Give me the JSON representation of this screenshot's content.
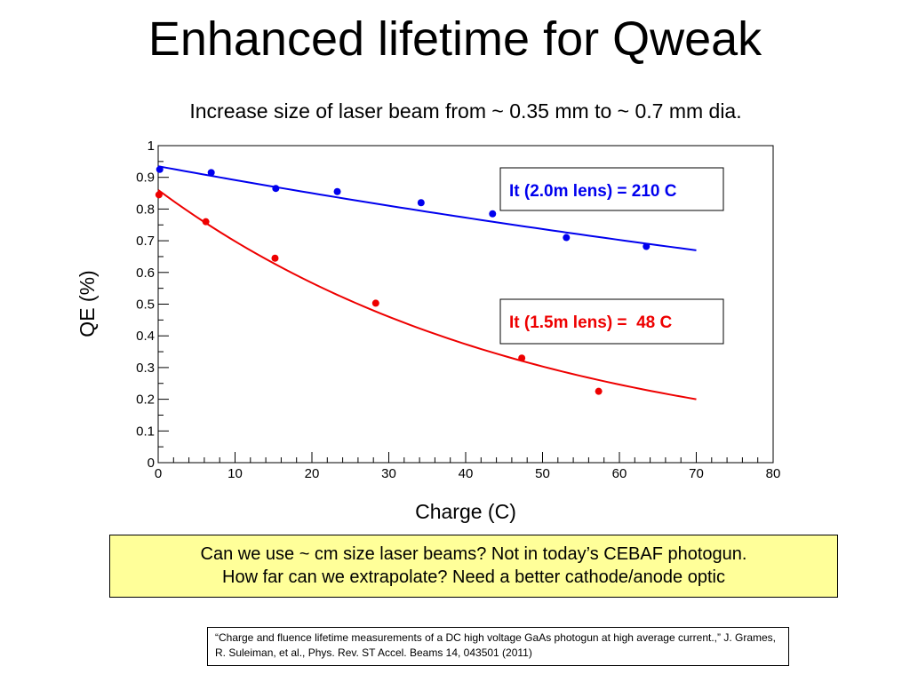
{
  "slide": {
    "title": "Enhanced lifetime for Qweak",
    "subtitle": "Increase size of laser beam from ~ 0.35 mm to ~ 0.7 mm dia.",
    "note_line1": "Can we use ~ cm size laser beams?  Not in today’s CEBAF photogun.",
    "note_line2": "How far can we extrapolate?  Need a better cathode/anode optic",
    "citation": "“Charge and fluence lifetime measurements of a DC high voltage GaAs photogun at high average current.,” J. Grames, R. Suleiman, et al., Phys. Rev. ST Accel. Beams 14, 043501 (2011)"
  },
  "chart_data": {
    "type": "scatter",
    "xlabel": "Charge (C)",
    "ylabel": "QE (%)",
    "xlim": [
      0,
      80
    ],
    "ylim": [
      0,
      1
    ],
    "x_ticks": [
      0,
      10,
      20,
      30,
      40,
      50,
      60,
      70,
      80
    ],
    "y_ticks": [
      0,
      0.1,
      0.2,
      0.3,
      0.4,
      0.5,
      0.6,
      0.7,
      0.8,
      0.9,
      1
    ],
    "grid": false,
    "series": [
      {
        "name": "It (2.0m lens) = 210 C",
        "color": "#0000ee",
        "x": [
          0.2,
          6.9,
          15.3,
          23.3,
          34.2,
          43.5,
          53.1,
          63.5
        ],
        "y": [
          0.925,
          0.915,
          0.865,
          0.855,
          0.82,
          0.785,
          0.71,
          0.682
        ],
        "fit": {
          "model": "exponential",
          "a": 0.935,
          "lifetime": 210,
          "x_range": [
            0,
            70
          ]
        }
      },
      {
        "name": "It (1.5m lens) =  48 C",
        "color": "#ee0000",
        "x": [
          0.1,
          6.2,
          15.2,
          28.3,
          47.3,
          57.3
        ],
        "y": [
          0.845,
          0.76,
          0.645,
          0.503,
          0.33,
          0.225
        ],
        "fit": {
          "model": "exponential",
          "a": 0.86,
          "lifetime": 48,
          "x_range": [
            0,
            70
          ]
        }
      }
    ]
  }
}
